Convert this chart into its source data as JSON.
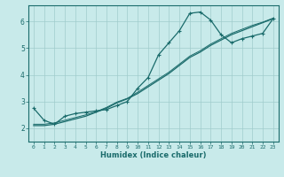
{
  "xlabel": "Humidex (Indice chaleur)",
  "ylabel": "",
  "background_color": "#c8eaea",
  "grid_color": "#a0cccc",
  "line_color": "#1a6b6b",
  "xlim": [
    -0.5,
    23.5
  ],
  "ylim": [
    1.5,
    6.6
  ],
  "xticks": [
    0,
    1,
    2,
    3,
    4,
    5,
    6,
    7,
    8,
    9,
    10,
    11,
    12,
    13,
    14,
    15,
    16,
    17,
    18,
    19,
    20,
    21,
    22,
    23
  ],
  "yticks": [
    2,
    3,
    4,
    5,
    6
  ],
  "series1_x": [
    0,
    1,
    2,
    3,
    4,
    5,
    6,
    7,
    8,
    9,
    10,
    11,
    12,
    13,
    14,
    15,
    16,
    17,
    18,
    19,
    20,
    21,
    22,
    23
  ],
  "series1_y": [
    2.75,
    2.3,
    2.15,
    2.45,
    2.55,
    2.6,
    2.65,
    2.7,
    2.85,
    3.0,
    3.5,
    3.9,
    4.75,
    5.2,
    5.65,
    6.3,
    6.35,
    6.05,
    5.5,
    5.2,
    5.35,
    5.45,
    5.55,
    6.1
  ],
  "series2_x": [
    0,
    1,
    2,
    3,
    4,
    5,
    6,
    7,
    8,
    9,
    10,
    11,
    12,
    13,
    14,
    15,
    16,
    17,
    18,
    19,
    20,
    21,
    22,
    23
  ],
  "series2_y": [
    2.1,
    2.1,
    2.15,
    2.25,
    2.35,
    2.45,
    2.6,
    2.75,
    2.95,
    3.1,
    3.3,
    3.55,
    3.8,
    4.05,
    4.35,
    4.65,
    4.85,
    5.1,
    5.3,
    5.5,
    5.65,
    5.8,
    5.95,
    6.1
  ],
  "series3_x": [
    0,
    1,
    2,
    3,
    4,
    5,
    6,
    7,
    8,
    9,
    10,
    11,
    12,
    13,
    14,
    15,
    16,
    17,
    18,
    19,
    20,
    21,
    22,
    23
  ],
  "series3_y": [
    2.15,
    2.15,
    2.2,
    2.3,
    2.4,
    2.5,
    2.62,
    2.78,
    2.98,
    3.12,
    3.35,
    3.6,
    3.85,
    4.1,
    4.4,
    4.7,
    4.9,
    5.15,
    5.35,
    5.55,
    5.7,
    5.85,
    5.97,
    6.12
  ]
}
